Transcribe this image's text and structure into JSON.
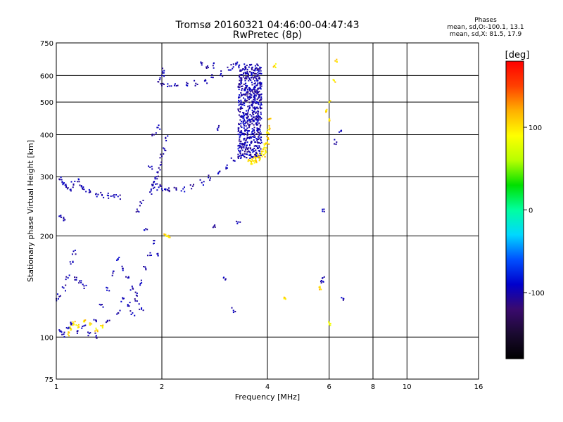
{
  "chart_data": {
    "type": "scatter",
    "title": "Tromsø 20160321 04:46:00-04:47:43",
    "subtitle": "RwPretec (8p)",
    "xlabel": "Frequency [MHz]",
    "ylabel": "Stationary phase Virtual Height [km]",
    "x_scale": "log",
    "y_scale": "log",
    "xlim": [
      1,
      16
    ],
    "ylim": [
      75,
      750
    ],
    "x_ticks": [
      1,
      2,
      4,
      6,
      8,
      10,
      16
    ],
    "x_tick_labels": [
      "1",
      "2",
      "4",
      "6",
      "8",
      "10",
      "16"
    ],
    "y_ticks": [
      75,
      100,
      200,
      300,
      400,
      500,
      600,
      750
    ],
    "y_tick_labels": [
      "75",
      "100",
      "200",
      "300",
      "400",
      "500",
      "600",
      "750"
    ],
    "grid": true,
    "colorbar": {
      "label": "[deg]",
      "range": [
        -180,
        180
      ],
      "ticks": [
        -100,
        0,
        100
      ],
      "tick_labels": [
        "-100",
        "0",
        "100"
      ],
      "colors": [
        "#000000",
        "#1a0a30",
        "#3a0a6e",
        "#0000cc",
        "#0050ff",
        "#00d8ff",
        "#00ffa0",
        "#00e000",
        "#b8ff00",
        "#ffff00",
        "#ffb000",
        "#ff4000",
        "#ff0000"
      ]
    },
    "stats": {
      "heading": "Phases",
      "o_line": "mean, sd,O:-100.1, 13.1",
      "x_line": "mean, sd,X:  81.5, 17.9"
    },
    "o_trace": {
      "phase": -100,
      "points": [
        [
          1.85,
          270
        ],
        [
          1.88,
          282
        ],
        [
          1.9,
          290
        ],
        [
          1.93,
          300
        ],
        [
          1.95,
          310
        ],
        [
          1.98,
          325
        ],
        [
          2.0,
          345
        ],
        [
          2.02,
          365
        ],
        [
          2.05,
          390
        ],
        [
          1.92,
          285
        ],
        [
          1.96,
          279
        ],
        [
          2.0,
          276
        ],
        [
          2.05,
          274
        ],
        [
          2.1,
          273
        ],
        [
          2.2,
          274
        ],
        [
          2.3,
          276
        ],
        [
          2.45,
          281
        ],
        [
          2.6,
          288
        ],
        [
          2.75,
          297
        ],
        [
          2.9,
          308
        ],
        [
          3.05,
          320
        ],
        [
          3.2,
          335
        ],
        [
          3.35,
          352
        ],
        [
          3.5,
          372
        ],
        [
          2.0,
          560
        ],
        [
          2.1,
          558
        ],
        [
          2.2,
          559
        ],
        [
          2.35,
          562
        ],
        [
          2.5,
          568
        ],
        [
          2.65,
          578
        ],
        [
          2.8,
          592
        ],
        [
          2.95,
          607
        ],
        [
          3.1,
          623
        ],
        [
          3.2,
          636
        ],
        [
          3.25,
          645
        ],
        [
          1.95,
          575
        ],
        [
          2.0,
          600
        ],
        [
          2.03,
          620
        ],
        [
          2.6,
          645
        ],
        [
          2.7,
          640
        ],
        [
          2.8,
          642
        ],
        [
          1.02,
          295
        ],
        [
          1.04,
          290
        ],
        [
          1.06,
          283
        ],
        [
          1.08,
          278
        ],
        [
          1.1,
          275
        ],
        [
          1.12,
          285
        ],
        [
          1.15,
          290
        ],
        [
          1.18,
          282
        ],
        [
          1.2,
          275
        ],
        [
          1.25,
          270
        ],
        [
          1.3,
          267
        ],
        [
          1.35,
          265
        ],
        [
          1.4,
          264
        ],
        [
          1.45,
          263
        ],
        [
          1.5,
          262
        ],
        [
          1.03,
          230
        ],
        [
          1.05,
          225
        ],
        [
          1.0,
          130
        ],
        [
          1.02,
          132
        ],
        [
          1.05,
          140
        ],
        [
          1.08,
          150
        ],
        [
          1.1,
          165
        ],
        [
          1.12,
          180
        ],
        [
          1.14,
          148
        ],
        [
          1.16,
          145
        ],
        [
          1.2,
          142
        ],
        [
          1.02,
          105
        ],
        [
          1.05,
          102
        ],
        [
          1.08,
          106
        ],
        [
          1.1,
          110
        ],
        [
          1.15,
          104
        ],
        [
          1.2,
          108
        ],
        [
          1.25,
          103
        ],
        [
          1.3,
          101
        ],
        [
          1.3,
          112
        ],
        [
          1.35,
          125
        ],
        [
          1.4,
          140
        ],
        [
          1.45,
          155
        ],
        [
          1.5,
          170
        ],
        [
          1.55,
          160
        ],
        [
          1.6,
          150
        ],
        [
          1.65,
          140
        ],
        [
          1.7,
          135
        ],
        [
          1.75,
          145
        ],
        [
          1.8,
          160
        ],
        [
          1.85,
          175
        ],
        [
          1.9,
          190
        ],
        [
          1.95,
          175
        ],
        [
          1.4,
          112
        ],
        [
          1.5,
          118
        ],
        [
          1.55,
          130
        ],
        [
          1.6,
          125
        ],
        [
          1.65,
          118
        ],
        [
          1.7,
          128
        ],
        [
          1.75,
          122
        ],
        [
          1.7,
          240
        ],
        [
          1.75,
          250
        ],
        [
          1.8,
          210
        ],
        [
          1.85,
          320
        ],
        [
          1.9,
          400
        ],
        [
          1.95,
          420
        ],
        [
          2.8,
          212
        ],
        [
          3.0,
          150
        ],
        [
          3.2,
          120
        ],
        [
          2.9,
          420
        ],
        [
          3.3,
          220
        ],
        [
          5.8,
          240
        ],
        [
          6.3,
          380
        ],
        [
          6.5,
          410
        ],
        [
          6.6,
          130
        ],
        [
          5.7,
          145
        ],
        [
          5.75,
          150
        ]
      ]
    },
    "x_trace": {
      "phase": 100,
      "points": [
        [
          3.55,
          335
        ],
        [
          3.62,
          337
        ],
        [
          3.7,
          340
        ],
        [
          3.78,
          345
        ],
        [
          3.85,
          352
        ],
        [
          3.9,
          362
        ],
        [
          3.95,
          375
        ],
        [
          4.0,
          390
        ],
        [
          4.02,
          405
        ],
        [
          4.05,
          420
        ],
        [
          4.06,
          445
        ],
        [
          3.6,
          330
        ],
        [
          3.7,
          333
        ],
        [
          3.8,
          338
        ],
        [
          3.9,
          348
        ],
        [
          3.95,
          360
        ],
        [
          4.0,
          380
        ],
        [
          1.08,
          102
        ],
        [
          1.1,
          106
        ],
        [
          1.12,
          110
        ],
        [
          1.15,
          108
        ],
        [
          1.2,
          112
        ],
        [
          1.25,
          110
        ],
        [
          1.3,
          105
        ],
        [
          1.35,
          108
        ],
        [
          2.05,
          200
        ],
        [
          2.1,
          198
        ],
        [
          4.2,
          640
        ],
        [
          6.0,
          500
        ],
        [
          5.9,
          470
        ],
        [
          6.0,
          440
        ],
        [
          6.2,
          580
        ],
        [
          6.3,
          660
        ],
        [
          5.65,
          140
        ],
        [
          4.5,
          130
        ],
        [
          6.0,
          110
        ]
      ]
    },
    "o_region": {
      "phase": -100,
      "x_range": [
        3.3,
        3.85
      ],
      "y_range": [
        340,
        650
      ]
    }
  }
}
